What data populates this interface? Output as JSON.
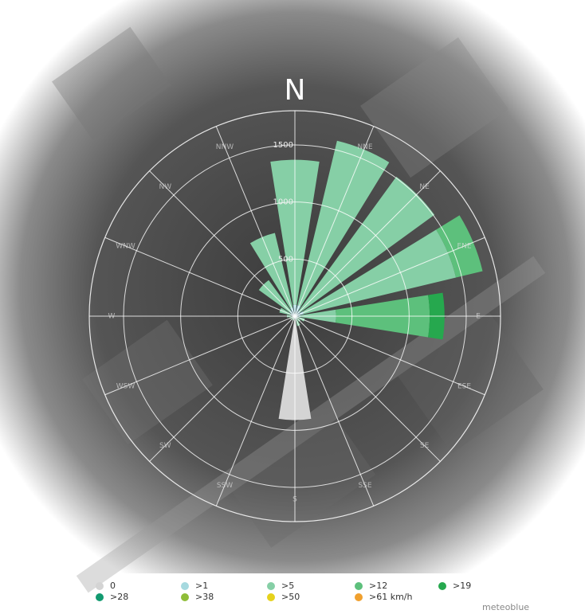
{
  "chart_data": {
    "type": "wind-rose",
    "directions": [
      "N",
      "NNE",
      "NE",
      "ENE",
      "E",
      "ESE",
      "SE",
      "SSE",
      "S",
      "SSW",
      "SW",
      "WSW",
      "W",
      "WNW",
      "NW",
      "NNW"
    ],
    "series": [
      {
        "name": "0",
        "color": "#d4d4d4",
        "values": [
          0,
          0,
          0,
          0,
          0,
          0,
          0,
          0,
          910,
          0,
          0,
          0,
          0,
          0,
          0,
          0
        ]
      },
      {
        "name": ">1",
        "color": "#a6d9df",
        "values": [
          100,
          100,
          60,
          80,
          50,
          30,
          20,
          30,
          0,
          20,
          20,
          20,
          30,
          40,
          60,
          80
        ]
      },
      {
        "name": ">5",
        "color": "#86cfa6",
        "values": [
          1270,
          1480,
          1450,
          1370,
          310,
          60,
          40,
          60,
          0,
          20,
          20,
          30,
          40,
          100,
          330,
          670
        ]
      },
      {
        "name": ">12",
        "color": "#5dc07c",
        "values": [
          0,
          0,
          0,
          240,
          820,
          0,
          0,
          0,
          0,
          0,
          0,
          0,
          0,
          0,
          0,
          0
        ]
      },
      {
        "name": ">19",
        "color": "#26a84e",
        "values": [
          0,
          0,
          0,
          0,
          130,
          0,
          0,
          0,
          0,
          0,
          0,
          0,
          0,
          0,
          0,
          0
        ]
      },
      {
        "name": ">28",
        "color": "#129a70",
        "values": [
          0,
          0,
          0,
          0,
          0,
          0,
          0,
          0,
          0,
          0,
          0,
          0,
          0,
          0,
          0,
          0
        ]
      },
      {
        "name": ">38",
        "color": "#8fbd38",
        "values": [
          0,
          0,
          0,
          0,
          0,
          0,
          0,
          0,
          0,
          0,
          0,
          0,
          0,
          0,
          0,
          0
        ]
      },
      {
        "name": ">50",
        "color": "#e6d21c",
        "values": [
          0,
          0,
          0,
          0,
          0,
          0,
          0,
          0,
          0,
          0,
          0,
          0,
          0,
          0,
          0,
          0
        ]
      },
      {
        "name": ">61 km/h",
        "color": "#f0a02e",
        "values": [
          0,
          0,
          0,
          0,
          0,
          0,
          0,
          0,
          0,
          0,
          0,
          0,
          0,
          0,
          0,
          0
        ]
      }
    ],
    "rlim": [
      0,
      1800
    ],
    "rticks": [
      500,
      1000,
      1500
    ],
    "credit": "meteoblue"
  }
}
